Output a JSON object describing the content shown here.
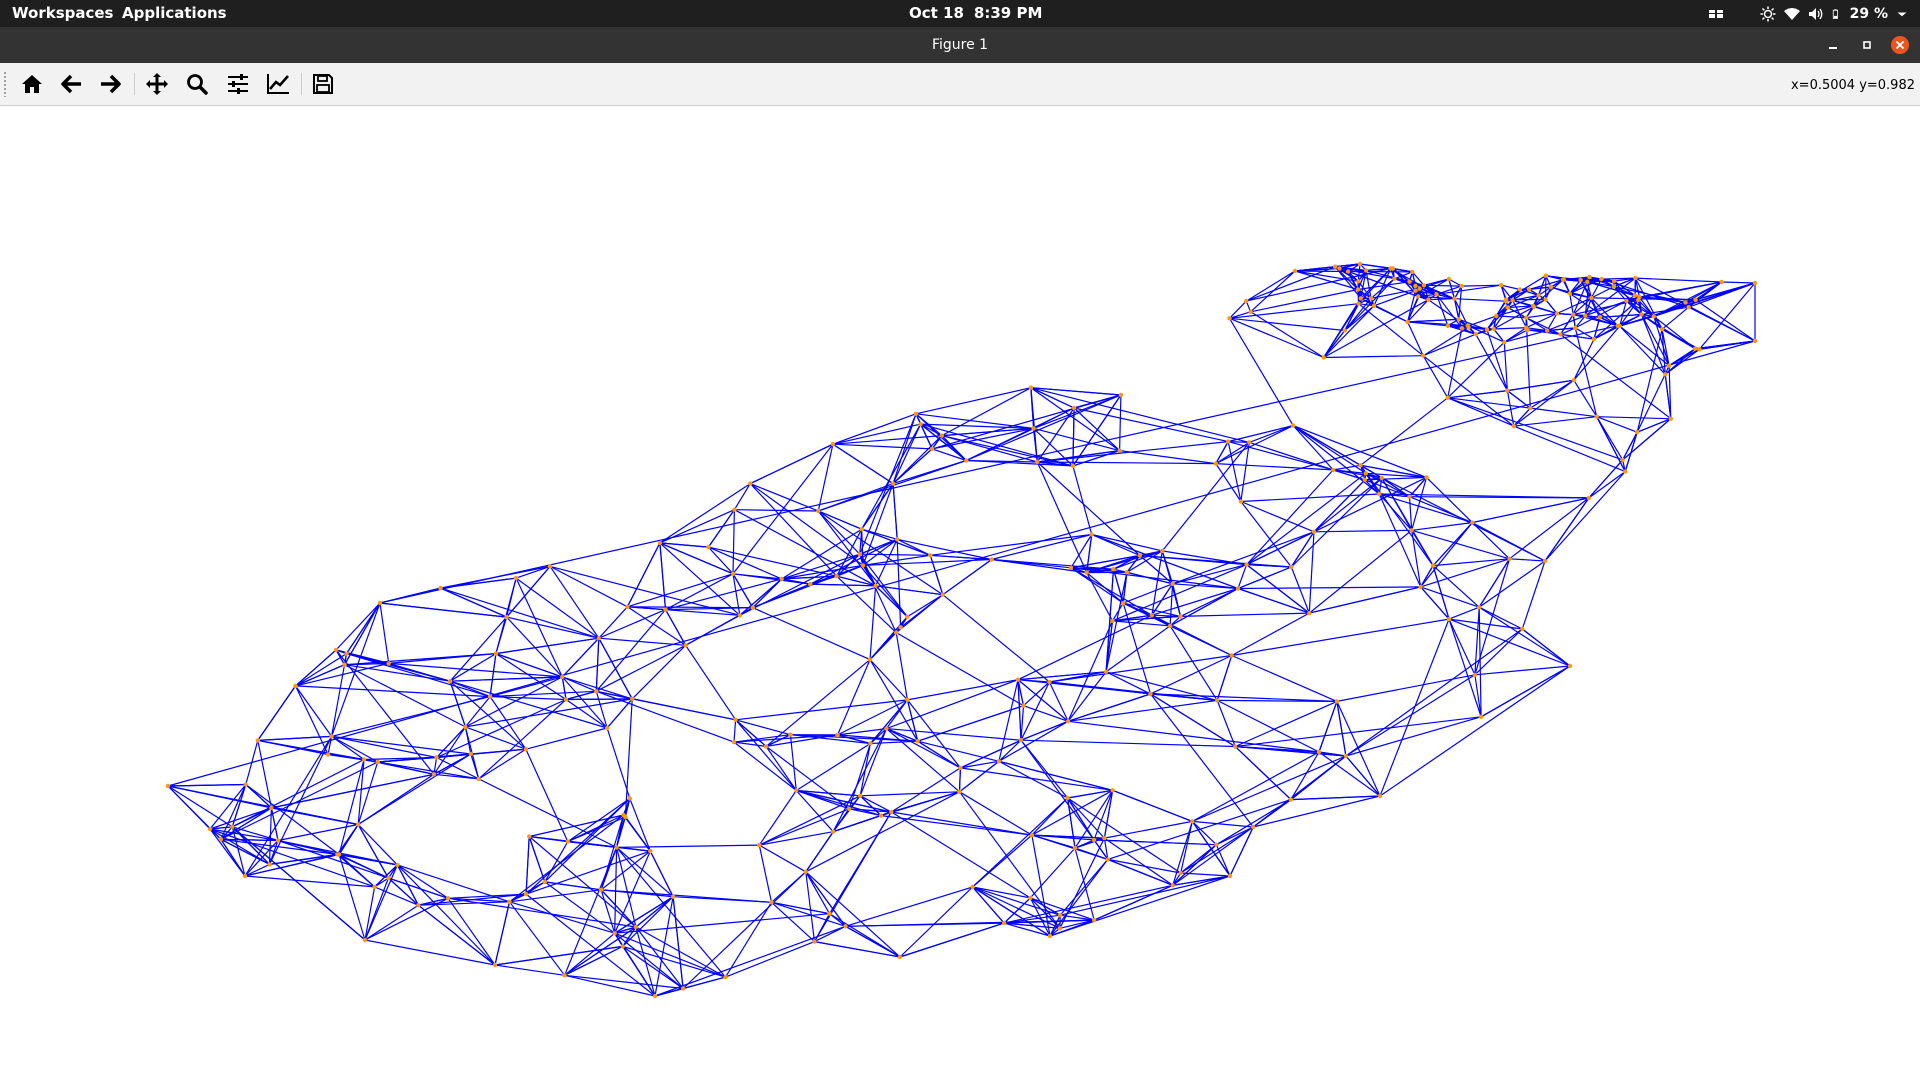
{
  "topbar": {
    "workspaces": "Workspaces",
    "applications": "Applications",
    "date": "Oct 18",
    "time": "8:39 PM",
    "battery": "29 %",
    "icons": [
      "window-list-icon",
      "brightness-icon",
      "wifi-icon",
      "volume-icon",
      "battery-icon",
      "chevron-down-icon"
    ]
  },
  "window": {
    "title": "Figure 1",
    "buttons": [
      "minimize-icon",
      "maximize-icon",
      "close-icon"
    ],
    "close_color": "#e95420"
  },
  "toolbar": {
    "tools": [
      "home-icon",
      "back-icon",
      "forward-icon",
      "pan-icon",
      "zoom-icon",
      "configure-subplots-icon",
      "edit-axes-icon",
      "save-icon"
    ],
    "coords": "x=0.5004 y=0.982"
  },
  "figure": {
    "type": "network-graph",
    "edge_color": "#0000ff",
    "node_color": "#ff9900",
    "node_count": 320,
    "edge_count": 1700,
    "axes_visible": false
  }
}
